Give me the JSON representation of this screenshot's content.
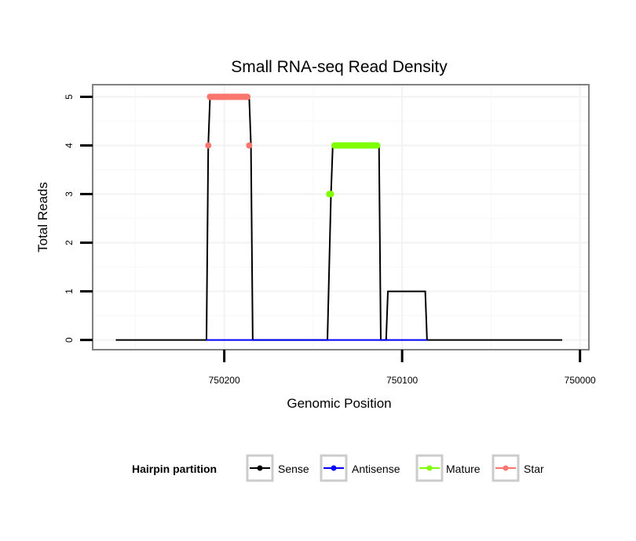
{
  "chart_data": {
    "type": "line",
    "title": "Small RNA-seq Read Density",
    "xlabel": "Genomic Position",
    "ylabel": "Total Reads",
    "x_reversed": true,
    "xlim": [
      750274,
      749995
    ],
    "ylim": [
      -0.2,
      5.25
    ],
    "x_ticks": [
      {
        "value": 750200,
        "label": "750200"
      },
      {
        "value": 750100,
        "label": "750100"
      },
      {
        "value": 750000,
        "label": "750000"
      }
    ],
    "y_ticks": [
      {
        "value": 0,
        "label": "0"
      },
      {
        "value": 1,
        "label": "1"
      },
      {
        "value": 2,
        "label": "2"
      },
      {
        "value": 3,
        "label": "3"
      },
      {
        "value": 4,
        "label": "4"
      },
      {
        "value": 5,
        "label": "5"
      }
    ],
    "grid": true,
    "series": [
      {
        "name": "Sense",
        "color": "#000000",
        "show_points": false,
        "points": [
          [
            750261,
            0
          ],
          [
            750210,
            0
          ],
          [
            750209,
            4
          ],
          [
            750208,
            5
          ],
          [
            750186,
            5
          ],
          [
            750185,
            4
          ],
          [
            750184,
            0
          ],
          [
            750142,
            0
          ],
          [
            750140,
            3
          ],
          [
            750139,
            4
          ],
          [
            750113,
            4
          ],
          [
            750112,
            0
          ],
          [
            750109,
            0
          ],
          [
            750108,
            1
          ],
          [
            750087,
            1
          ],
          [
            750086,
            0
          ],
          [
            750010,
            0
          ]
        ]
      },
      {
        "name": "Antisense",
        "color": "#0000ff",
        "show_points": false,
        "points": [
          [
            750210,
            0
          ],
          [
            750184,
            0
          ],
          [
            750142,
            0
          ],
          [
            750086,
            0
          ]
        ]
      },
      {
        "name": "Mature",
        "color": "#7fff00",
        "show_points": true,
        "points": [
          [
            750141,
            3
          ],
          [
            750140,
            3
          ],
          [
            750138,
            4
          ],
          [
            750135,
            4
          ],
          [
            750132,
            4
          ],
          [
            750129,
            4
          ],
          [
            750126,
            4
          ],
          [
            750123,
            4
          ],
          [
            750120,
            4
          ],
          [
            750117,
            4
          ],
          [
            750114,
            4
          ]
        ]
      },
      {
        "name": "Star",
        "color": "#f8766d",
        "show_points": true,
        "points": [
          [
            750209,
            4
          ],
          [
            750208,
            5
          ],
          [
            750205,
            5
          ],
          [
            750202,
            5
          ],
          [
            750199,
            5
          ],
          [
            750196,
            5
          ],
          [
            750193,
            5
          ],
          [
            750190,
            5
          ],
          [
            750187,
            5
          ],
          [
            750186,
            4
          ]
        ]
      }
    ],
    "legend": {
      "title": "Hairpin partition",
      "position": "bottom",
      "entries": [
        {
          "label": "Sense",
          "color": "#000000"
        },
        {
          "label": "Antisense",
          "color": "#0000ff"
        },
        {
          "label": "Mature",
          "color": "#7fff00"
        },
        {
          "label": "Star",
          "color": "#f8766d"
        }
      ]
    }
  }
}
